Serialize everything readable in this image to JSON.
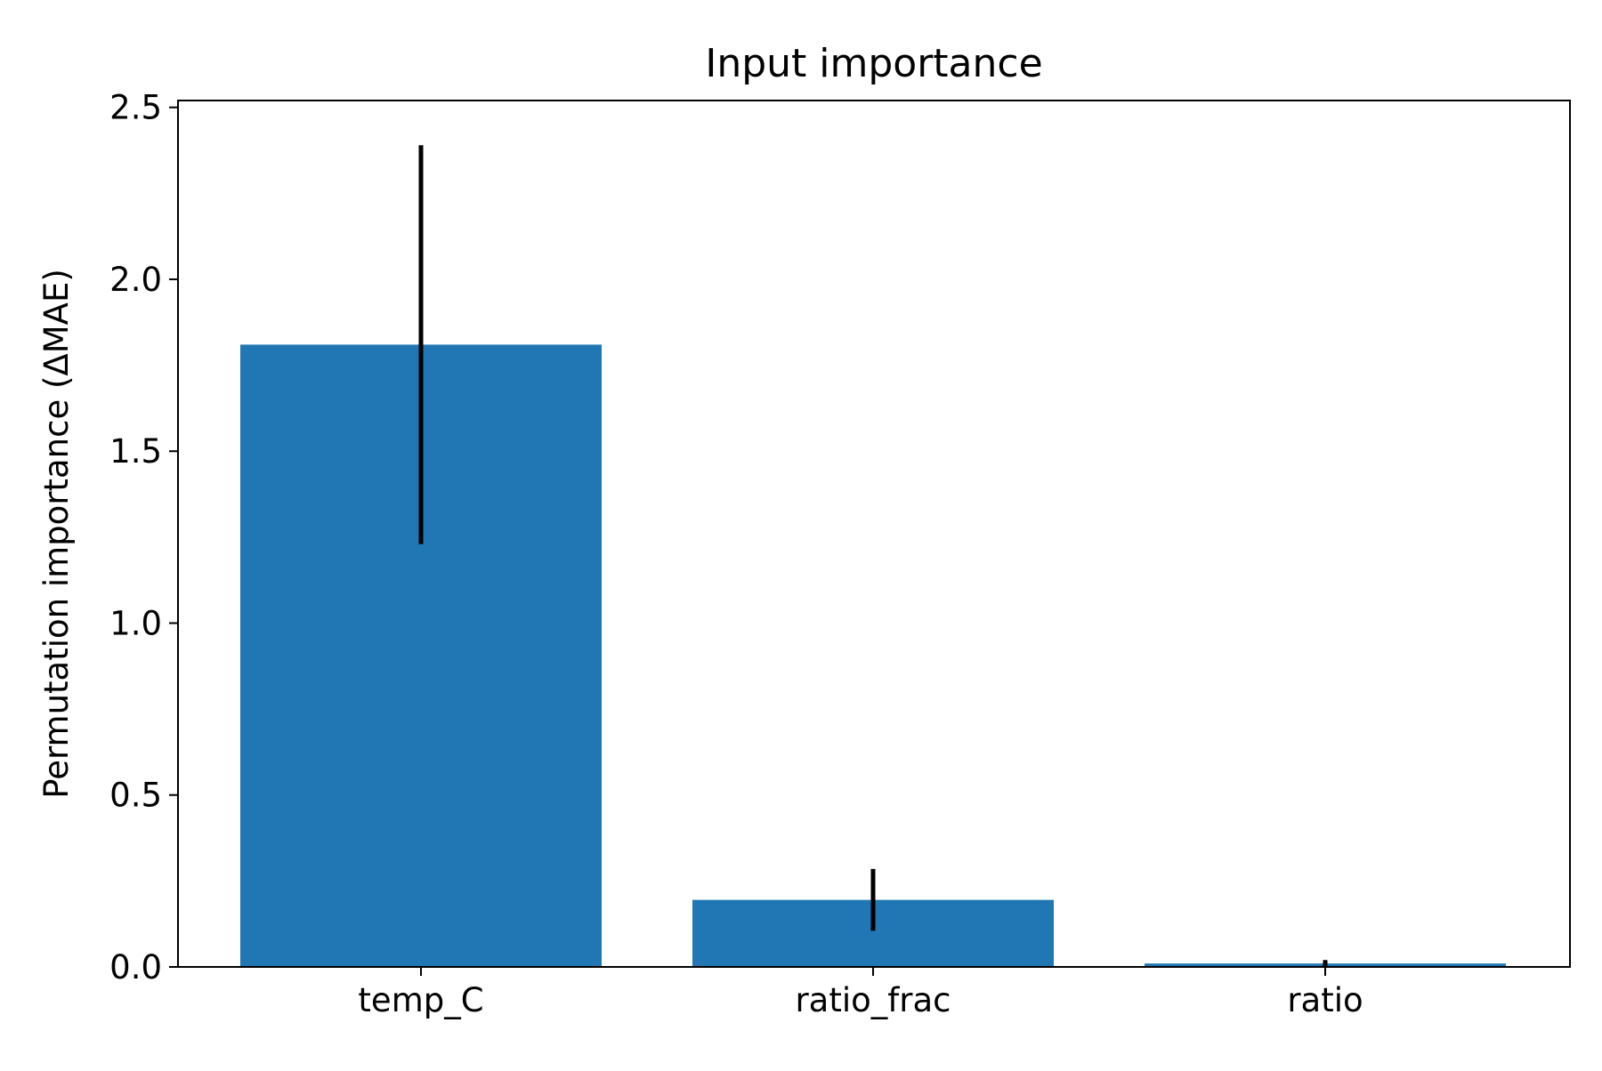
{
  "chart_data": {
    "type": "bar",
    "title": "Input importance",
    "xlabel": "",
    "ylabel": "Permutation importance (ΔMAE)",
    "categories": [
      "temp_C",
      "ratio_frac",
      "ratio"
    ],
    "series": [
      {
        "values": [
          1.81,
          0.195,
          0.01
        ],
        "error": [
          0.58,
          0.09,
          0.01
        ]
      }
    ],
    "ylim": [
      0,
      2.52
    ],
    "yticks": [
      0.0,
      0.5,
      1.0,
      1.5,
      2.0,
      2.5
    ],
    "ytick_labels": [
      "0.0",
      "0.5",
      "1.0",
      "1.5",
      "2.0",
      "2.5"
    ],
    "grid": false,
    "legend": "none",
    "colors": {
      "bar": "#2077b4",
      "error_bar": "#000000",
      "axis": "#000000"
    }
  }
}
